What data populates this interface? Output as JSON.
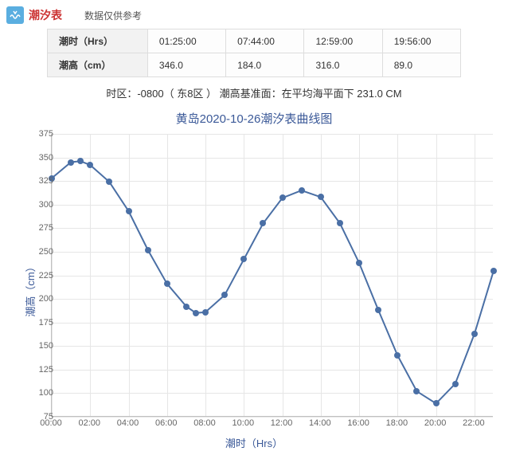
{
  "header": {
    "title": "潮汐表",
    "note": "数据仅供参考"
  },
  "table": {
    "row1_label": "潮时（Hrs）",
    "row2_label": "潮高（cm）",
    "times": [
      "01:25:00",
      "07:44:00",
      "12:59:00",
      "19:56:00"
    ],
    "heights": [
      "346.0",
      "184.0",
      "316.0",
      "89.0"
    ]
  },
  "tz_line": "时区：-0800（ 东8区 ） 潮高基准面：在平均海平面下 231.0 CM",
  "chart": {
    "title": "黄岛2020-10-26潮汐表曲线图",
    "type": "line",
    "xlabel": "潮时（Hrs）",
    "ylabel": "潮高（cm）",
    "ylim": [
      75,
      375
    ],
    "ytick_step": 25,
    "x_hours": [
      0,
      1,
      2,
      3,
      4,
      5,
      6,
      7,
      8,
      9,
      10,
      11,
      12,
      13,
      14,
      15,
      16,
      17,
      18,
      19,
      20,
      21,
      22,
      23
    ],
    "x_tick_labels": [
      "00:00",
      "02:00",
      "04:00",
      "06:00",
      "08:00",
      "10:00",
      "12:00",
      "14:00",
      "16:00",
      "18:00",
      "20:00",
      "22:00"
    ],
    "x_tick_hours": [
      0,
      2,
      4,
      6,
      8,
      10,
      12,
      14,
      16,
      18,
      20,
      22
    ],
    "values": [
      328,
      345,
      346,
      342,
      324,
      293,
      252,
      216,
      192,
      185,
      186,
      204,
      242,
      280,
      307,
      315,
      308,
      280,
      238,
      188,
      140,
      102,
      89,
      110,
      163,
      230
    ],
    "x_positions": [
      0,
      1,
      1.5,
      2,
      3,
      4,
      5,
      6,
      7,
      7.5,
      8,
      9,
      10,
      11,
      12,
      13,
      14,
      15,
      16,
      17,
      18,
      19,
      20,
      21,
      22,
      23
    ],
    "line_color": "#4a6fa5",
    "marker_fill": "#4a6fa5",
    "marker_size": 8,
    "line_width": 2,
    "background_color": "#ffffff",
    "grid_color": "#e6e6e6",
    "axis_color": "#c0c0c0",
    "label_color": "#3b5998",
    "tick_color": "#666666",
    "tick_fontsize": 11,
    "label_fontsize": 13,
    "title_fontsize": 15
  }
}
